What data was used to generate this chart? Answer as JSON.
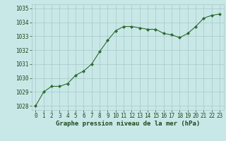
{
  "x": [
    0,
    1,
    2,
    3,
    4,
    5,
    6,
    7,
    8,
    9,
    10,
    11,
    12,
    13,
    14,
    15,
    16,
    17,
    18,
    19,
    20,
    21,
    22,
    23
  ],
  "y": [
    1028.0,
    1029.0,
    1029.4,
    1029.4,
    1029.6,
    1030.2,
    1030.5,
    1031.0,
    1031.9,
    1032.7,
    1033.4,
    1033.7,
    1033.7,
    1033.6,
    1033.5,
    1033.5,
    1033.2,
    1033.1,
    1032.9,
    1033.2,
    1033.7,
    1034.3,
    1034.5,
    1034.6
  ],
  "line_color": "#2d6a2d",
  "marker_color": "#2d6a2d",
  "bg_color": "#c8e8e8",
  "grid_color": "#a8c8c8",
  "text_color": "#1a4a1a",
  "ylim_min": 1027.7,
  "ylim_max": 1035.3,
  "yticks": [
    1028,
    1029,
    1030,
    1031,
    1032,
    1033,
    1034,
    1035
  ],
  "xticks": [
    0,
    1,
    2,
    3,
    4,
    5,
    6,
    7,
    8,
    9,
    10,
    11,
    12,
    13,
    14,
    15,
    16,
    17,
    18,
    19,
    20,
    21,
    22,
    23
  ],
  "tick_fontsize": 5.5,
  "xlabel": "Graphe pression niveau de la mer (hPa)",
  "xlabel_fontsize": 6.5
}
